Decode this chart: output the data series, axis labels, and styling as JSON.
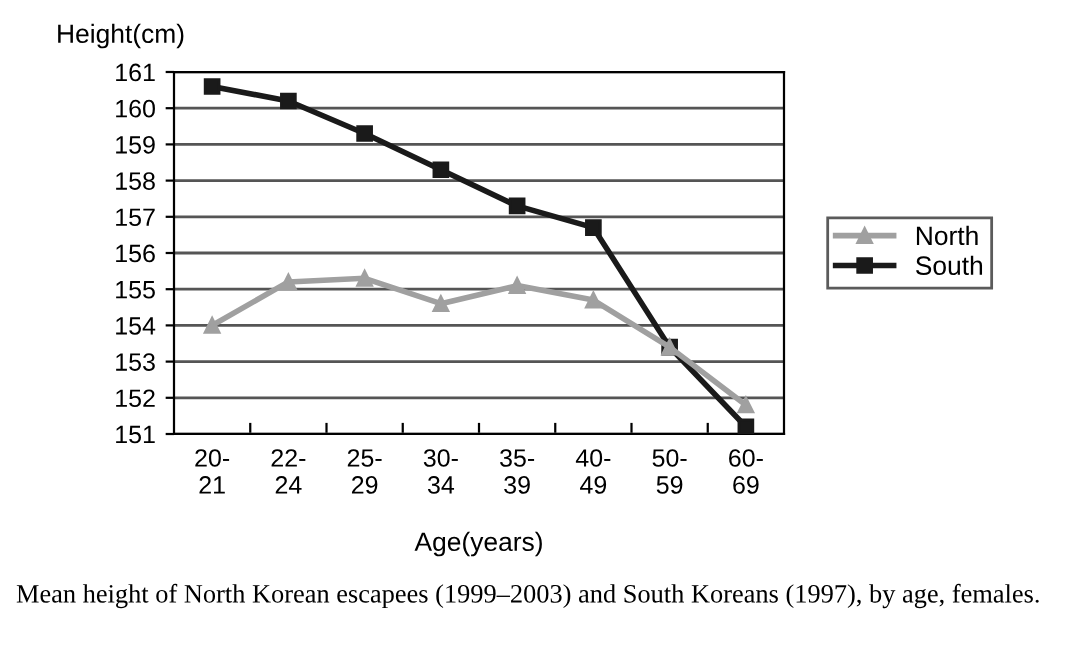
{
  "chart_data": {
    "type": "line",
    "ylabel": "Height(cm)",
    "xlabel": "Age(years)",
    "categories": [
      "20-\n21",
      "22-\n24",
      "25-\n29",
      "30-\n34",
      "35-\n39",
      "40-\n49",
      "50-\n59",
      "60-\n69"
    ],
    "series": [
      {
        "name": "North",
        "color": "#a0a0a0",
        "marker": "triangle",
        "values": [
          154.0,
          155.2,
          155.3,
          154.6,
          155.1,
          154.7,
          153.4,
          151.8
        ]
      },
      {
        "name": "South",
        "color": "#1a1a1a",
        "marker": "square",
        "values": [
          160.6,
          160.2,
          159.3,
          158.3,
          157.3,
          156.7,
          153.4,
          151.2
        ]
      }
    ],
    "ylim": [
      151,
      161
    ],
    "yticks": [
      151,
      152,
      153,
      154,
      155,
      156,
      157,
      158,
      159,
      160,
      161
    ],
    "grid": "y",
    "legend": "right",
    "annotations": [
      "Mean height of North Korean escapees (1999–2003) and South Koreans (1997), by age, females."
    ]
  }
}
